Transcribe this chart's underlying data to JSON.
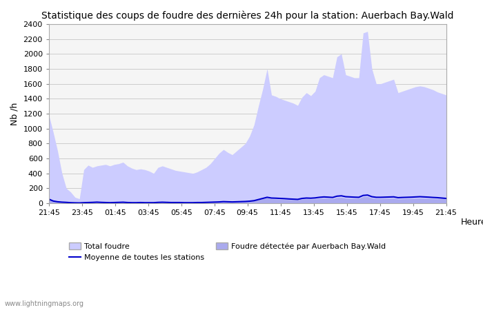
{
  "title": "Statistique des coups de foudre des dernières 24h pour la station: Auerbach Bay.Wald",
  "ylabel": "Nb /h",
  "xlabel": "Heure",
  "xlim_labels": [
    "21:45",
    "23:45",
    "01:45",
    "03:45",
    "05:45",
    "07:45",
    "09:45",
    "11:45",
    "13:45",
    "15:45",
    "17:45",
    "19:45",
    "21:45"
  ],
  "ylim": [
    0,
    2400
  ],
  "yticks": [
    0,
    200,
    400,
    600,
    800,
    1000,
    1200,
    1400,
    1600,
    1800,
    2000,
    2200,
    2400
  ],
  "bg_color": "#ffffff",
  "plot_bg_color": "#f5f5f5",
  "total_foudre_color": "#ccccff",
  "local_foudre_color": "#aaaaee",
  "moyenne_color": "#0000cc",
  "watermark": "www.lightningmaps.org",
  "total_foudre": [
    1180,
    950,
    700,
    400,
    200,
    150,
    80,
    60,
    450,
    510,
    480,
    500,
    510,
    520,
    500,
    520,
    530,
    550,
    500,
    470,
    450,
    460,
    450,
    430,
    400,
    480,
    500,
    480,
    460,
    440,
    430,
    420,
    410,
    400,
    420,
    450,
    480,
    530,
    600,
    670,
    720,
    680,
    650,
    700,
    750,
    800,
    900,
    1050,
    1300,
    1530,
    1800,
    1450,
    1430,
    1400,
    1380,
    1360,
    1340,
    1310,
    1420,
    1480,
    1440,
    1500,
    1680,
    1720,
    1700,
    1680,
    1960,
    2000,
    1720,
    1700,
    1680,
    1680,
    2280,
    2300,
    1800,
    1600,
    1600,
    1620,
    1640,
    1660,
    1480,
    1500,
    1520,
    1540,
    1560,
    1570,
    1560,
    1540,
    1520,
    1490,
    1470,
    1450
  ],
  "local_foudre": [
    50,
    40,
    30,
    20,
    15,
    10,
    8,
    5,
    10,
    15,
    20,
    25,
    20,
    18,
    15,
    18,
    20,
    22,
    18,
    15,
    14,
    16,
    15,
    14,
    13,
    20,
    22,
    20,
    18,
    17,
    16,
    15,
    14,
    13,
    16,
    17,
    18,
    20,
    22,
    25,
    30,
    28,
    25,
    26,
    27,
    28,
    32,
    38,
    48,
    60,
    70,
    58,
    55,
    52,
    50,
    48,
    46,
    46,
    55,
    58,
    54,
    58,
    65,
    68,
    66,
    62,
    75,
    78,
    66,
    65,
    64,
    65,
    88,
    90,
    70,
    62,
    62,
    64,
    66,
    68,
    58,
    60,
    62,
    64,
    66,
    68,
    66,
    64,
    62,
    60,
    58,
    56
  ],
  "moyenne": [
    55,
    30,
    20,
    15,
    12,
    8,
    6,
    5,
    8,
    10,
    12,
    15,
    12,
    10,
    8,
    10,
    12,
    14,
    10,
    8,
    8,
    10,
    8,
    8,
    8,
    12,
    14,
    12,
    10,
    10,
    10,
    8,
    8,
    8,
    10,
    10,
    12,
    14,
    16,
    18,
    22,
    20,
    18,
    20,
    22,
    24,
    28,
    35,
    50,
    65,
    80,
    70,
    68,
    65,
    62,
    58,
    55,
    52,
    65,
    70,
    68,
    72,
    80,
    85,
    82,
    78,
    95,
    100,
    88,
    85,
    82,
    80,
    105,
    110,
    88,
    80,
    80,
    82,
    84,
    86,
    75,
    78,
    80,
    82,
    85,
    88,
    85,
    82,
    78,
    75,
    70,
    65
  ]
}
